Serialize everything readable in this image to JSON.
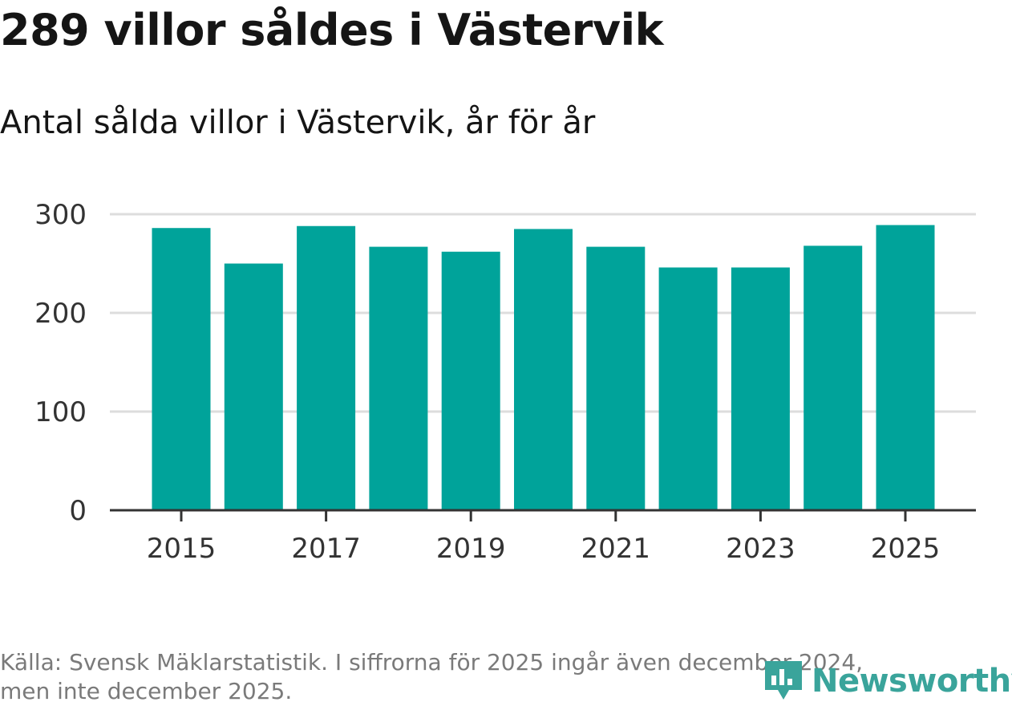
{
  "header": {
    "title": "289 villor såldes i Västervik",
    "subtitle": "Antal sålda villor i Västervik, år för år"
  },
  "footer": {
    "source_line1": "Källa: Svensk Mäklarstatistik. I siffrorna för 2025 ingår även december 2024,",
    "source_line2": "men inte december 2025.",
    "brand": "Newsworthy"
  },
  "colors": {
    "bar": "#00A39A",
    "grid": "#dddddd",
    "axis": "#333333",
    "brand": "#3aa49b"
  },
  "icons": {
    "logo": "newsworthy-chart-pin-icon"
  },
  "chart_data": {
    "type": "bar",
    "title": "Antal sålda villor i Västervik, år för år",
    "xlabel": "",
    "ylabel": "",
    "categories": [
      "2015",
      "2016",
      "2017",
      "2018",
      "2019",
      "2020",
      "2021",
      "2022",
      "2023",
      "2024",
      "2025"
    ],
    "values": [
      286,
      250,
      288,
      267,
      262,
      285,
      267,
      246,
      246,
      268,
      289
    ],
    "ylim": [
      0,
      300
    ],
    "yticks": [
      0,
      100,
      200,
      300
    ],
    "xtick_labels": [
      "2015",
      "2017",
      "2019",
      "2021",
      "2023",
      "2025"
    ],
    "grid": true,
    "legend": "none"
  }
}
